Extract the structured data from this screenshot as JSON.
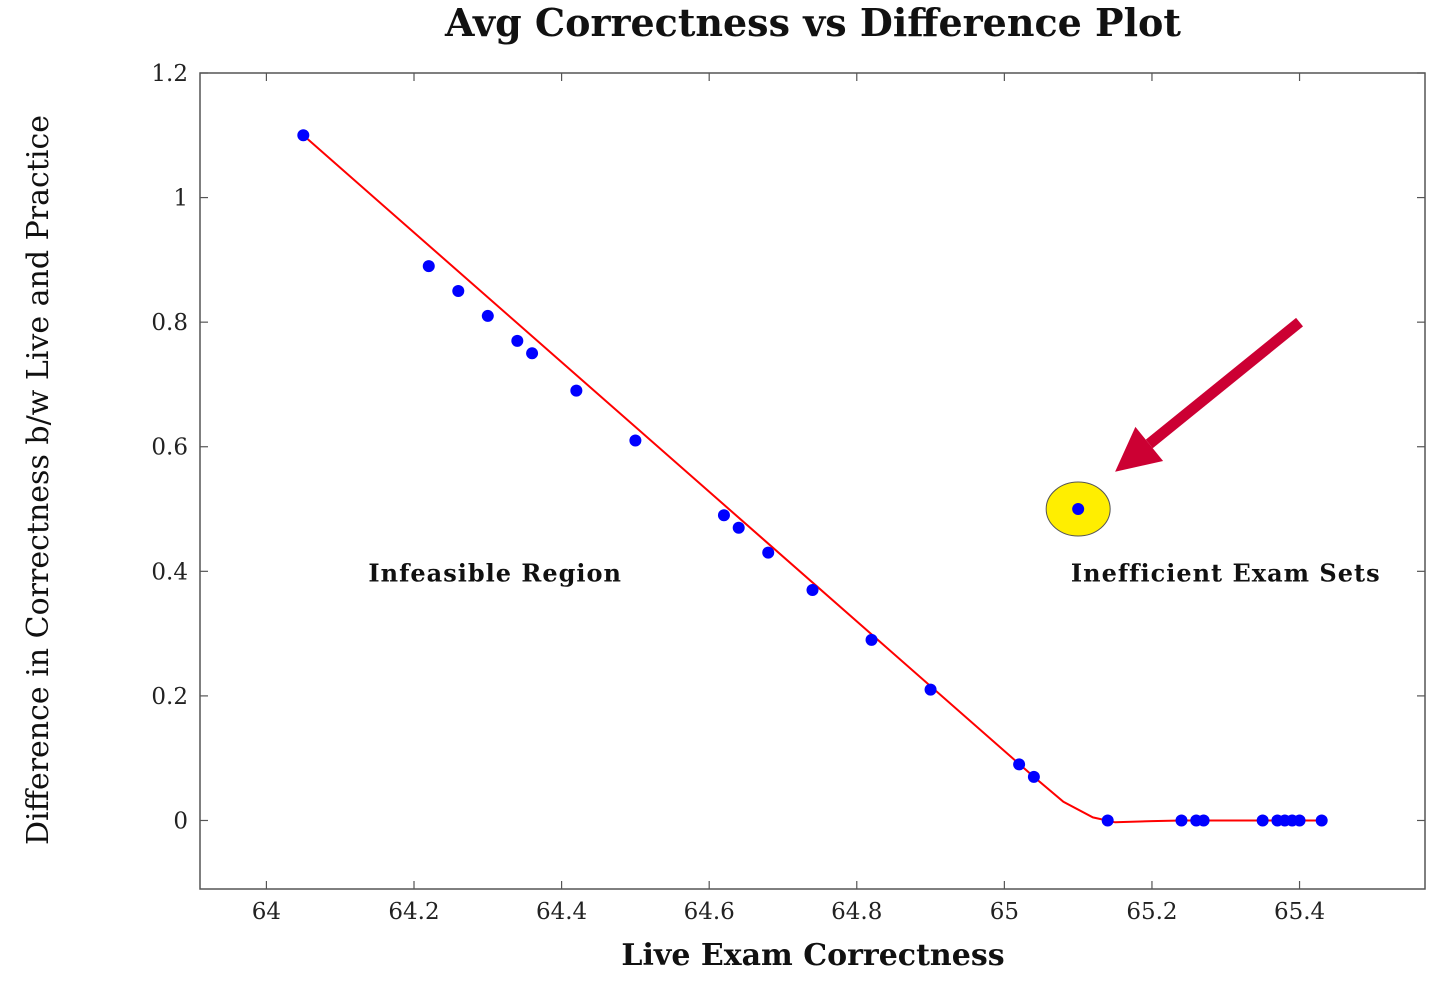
{
  "chart_data": {
    "type": "scatter",
    "title": "Avg Correctness vs Difference Plot",
    "xlabel": "Live Exam Correctness",
    "ylabel": "Difference in Correctness b/w Live and Practice",
    "xlim": [
      63.91,
      65.57
    ],
    "ylim": [
      -0.11,
      1.2
    ],
    "x_ticks": [
      "64",
      "64.2",
      "64.4",
      "64.6",
      "64.8",
      "65",
      "65.2",
      "65.4"
    ],
    "x_tick_values": [
      64,
      64.2,
      64.4,
      64.6,
      64.8,
      65,
      65.2,
      65.4
    ],
    "y_ticks": [
      "0",
      "0.2",
      "0.4",
      "0.6",
      "0.8",
      "1",
      "1.2"
    ],
    "y_tick_values": [
      0,
      0.2,
      0.4,
      0.6,
      0.8,
      1.0,
      1.2
    ],
    "grid": false,
    "series": [
      {
        "style": "points",
        "color": "#0000ff",
        "x": [
          64.05,
          64.22,
          64.26,
          64.3,
          64.34,
          64.36,
          64.42,
          64.5,
          64.62,
          64.64,
          64.68,
          64.74,
          64.82,
          64.9,
          65.02,
          65.04,
          65.14,
          65.24,
          65.26,
          65.27,
          65.35,
          65.37,
          65.38,
          65.39,
          65.4,
          65.43
        ],
        "y": [
          1.1,
          0.89,
          0.85,
          0.81,
          0.77,
          0.75,
          0.69,
          0.61,
          0.49,
          0.47,
          0.43,
          0.37,
          0.29,
          0.21,
          0.09,
          0.07,
          0.0,
          0.0,
          0.0,
          0.0,
          0.0,
          0.0,
          0.0,
          0.0,
          0.0,
          0.0
        ]
      },
      {
        "style": "line",
        "color": "#ff0000",
        "x": [
          64.05,
          65.04,
          65.08,
          65.12,
          65.15,
          65.2,
          65.24,
          65.43
        ],
        "y": [
          1.1,
          0.07,
          0.03,
          0.005,
          -0.003,
          -0.001,
          0.0,
          0.0
        ]
      }
    ],
    "highlight_point": {
      "x": 65.1,
      "y": 0.5,
      "point_color": "#0000ff",
      "ring_color": "#ffee00"
    },
    "annotations": [
      {
        "text": "Infeasible Region",
        "x": 64.31,
        "y": 0.4
      },
      {
        "text": "Inefficient Exam Sets",
        "x": 65.3,
        "y": 0.4
      }
    ],
    "arrow": {
      "from": [
        65.4,
        0.8
      ],
      "to": [
        65.15,
        0.56
      ],
      "color": "#cc0033"
    }
  }
}
